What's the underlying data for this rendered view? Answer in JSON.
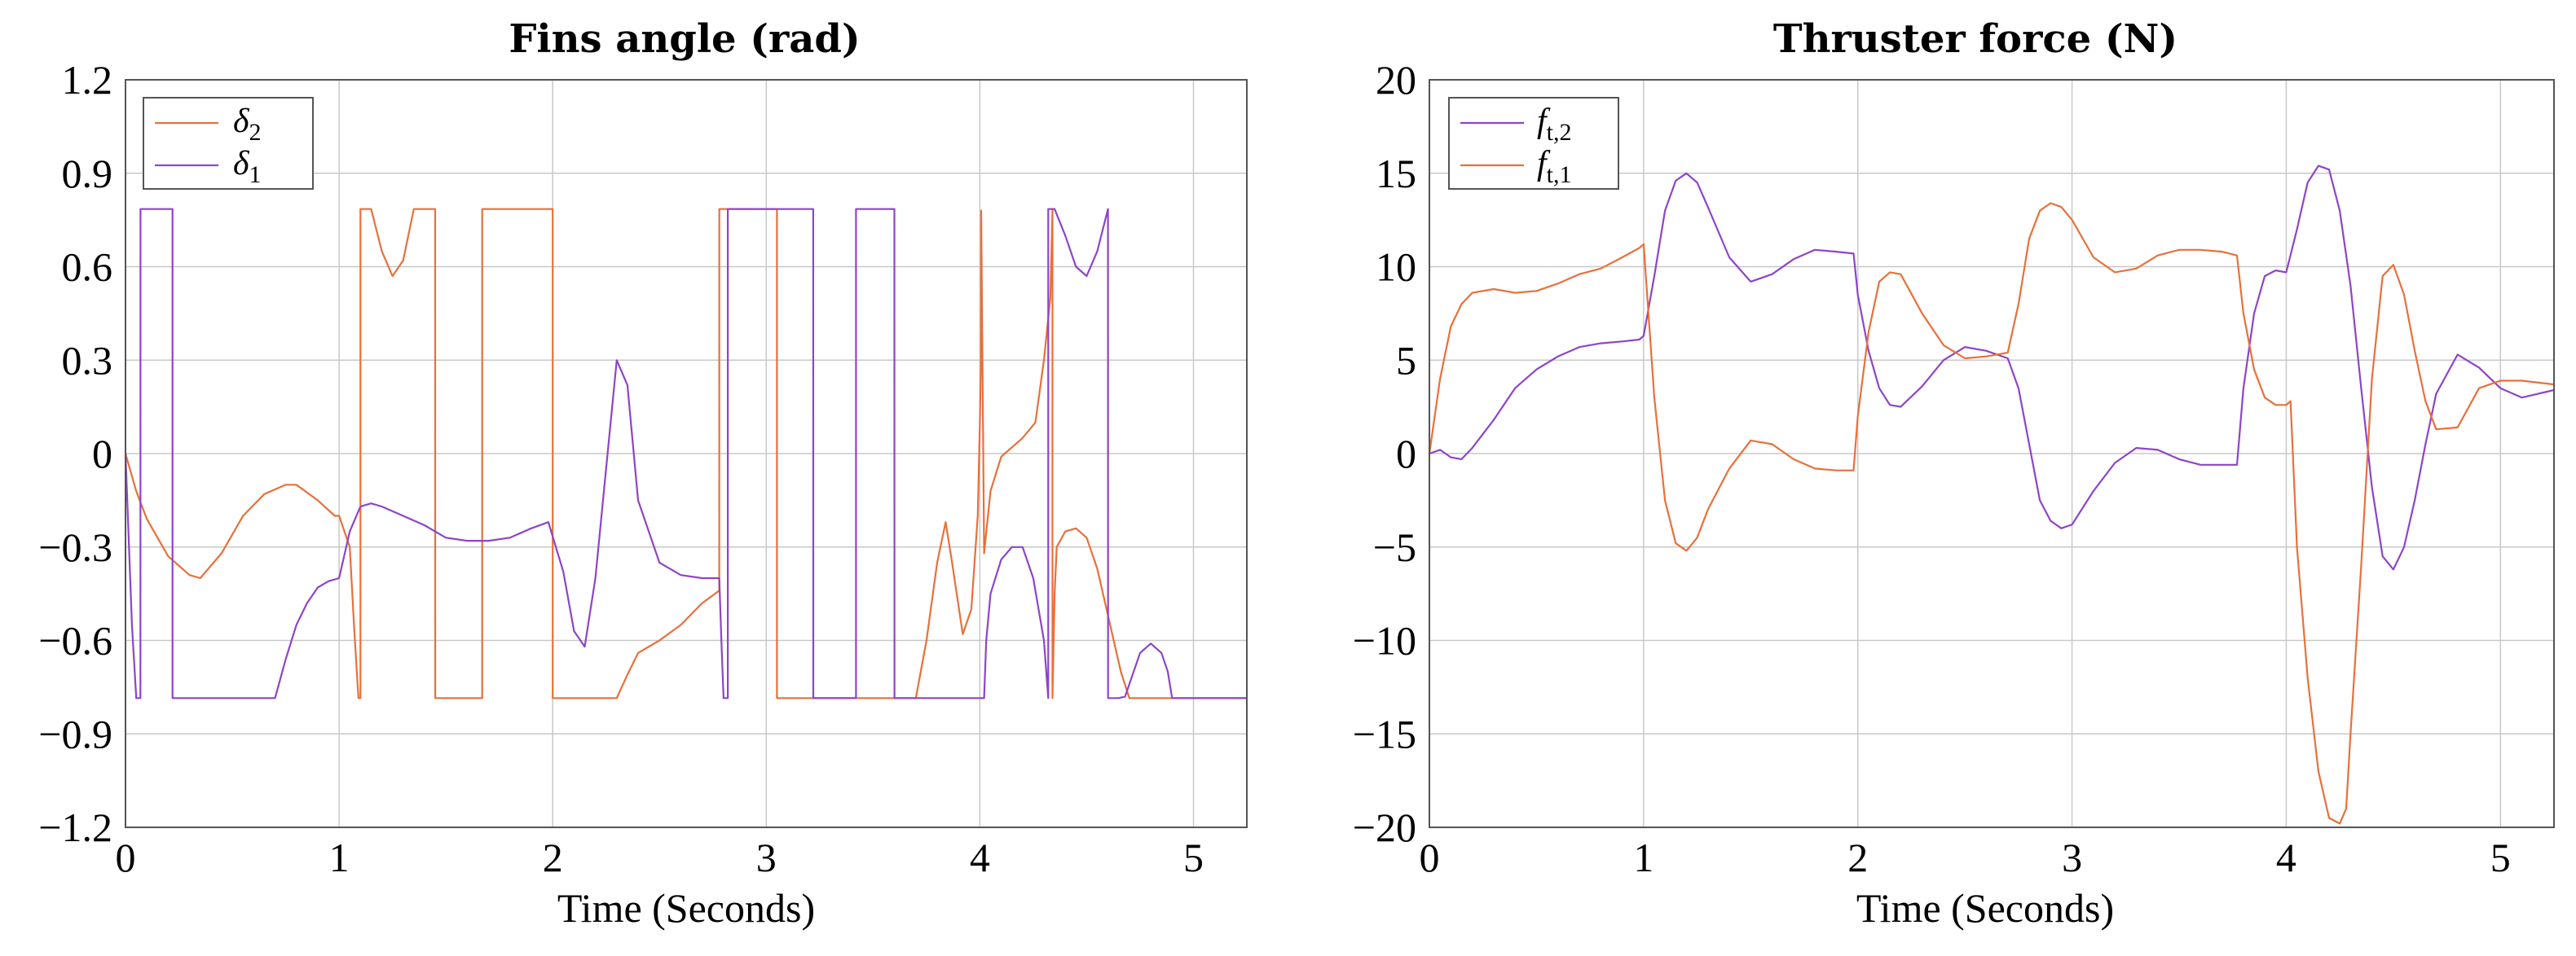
{
  "chart_data": [
    {
      "type": "line",
      "title": "Fins angle (rad)",
      "xlabel": "Time (Seconds)",
      "ylabel": "",
      "xlim": [
        0,
        5.25
      ],
      "ylim": [
        -1.2,
        1.2
      ],
      "x_ticks": [
        "0",
        "1",
        "2",
        "3",
        "4",
        "5"
      ],
      "y_ticks": [
        "1.2",
        "0.9",
        "0.6",
        "0.3",
        "0",
        "−0.3",
        "−0.6",
        "−0.9",
        "−1.2"
      ],
      "grid": true,
      "legend_position": "top-left",
      "legend": [
        {
          "symbol": "δ",
          "subscript": "2",
          "color": "#e8703a"
        },
        {
          "symbol": "δ",
          "subscript": "1",
          "color": "#8e44c8"
        }
      ],
      "series": [
        {
          "color": "#e8703a",
          "x": [
            0,
            0.05,
            0.1,
            0.2,
            0.3,
            0.35,
            0.45,
            0.55,
            0.65,
            0.75,
            0.8,
            0.9,
            0.98,
            1.0,
            1.05,
            1.07,
            1.09,
            1.091,
            1.1,
            1.1001,
            1.15,
            1.2,
            1.25,
            1.3,
            1.35,
            1.4,
            1.45,
            1.4501,
            1.67,
            1.6701,
            2.0,
            2.0001,
            2.3,
            2.35,
            2.4,
            2.5,
            2.6,
            2.7,
            2.78,
            2.7801,
            3.05,
            3.0501,
            3.7,
            3.75,
            3.8,
            3.84,
            3.87,
            3.92,
            3.96,
            3.99,
            4.0,
            4.005,
            4.006,
            4.02,
            4.05,
            4.1,
            4.2,
            4.26,
            4.3,
            4.33,
            4.34,
            4.3401,
            4.35,
            4.36,
            4.4,
            4.45,
            4.5,
            4.55,
            4.6,
            4.66,
            4.7,
            4.75,
            5.25
          ],
          "y": [
            0,
            -0.12,
            -0.21,
            -0.33,
            -0.39,
            -0.4,
            -0.32,
            -0.2,
            -0.13,
            -0.1,
            -0.1,
            -0.15,
            -0.2,
            -0.2,
            -0.3,
            -0.55,
            -0.78,
            -0.785,
            -0.785,
            0.785,
            0.785,
            0.65,
            0.57,
            0.62,
            0.785,
            0.785,
            0.785,
            -0.785,
            -0.785,
            0.785,
            0.785,
            -0.785,
            -0.785,
            -0.71,
            -0.64,
            -0.6,
            -0.55,
            -0.48,
            -0.44,
            0.785,
            0.785,
            -0.785,
            -0.785,
            -0.6,
            -0.35,
            -0.22,
            -0.35,
            -0.58,
            -0.5,
            -0.2,
            0.1,
            0.3,
            0.78,
            -0.32,
            -0.12,
            -0.01,
            0.05,
            0.1,
            0.3,
            0.5,
            0.785,
            -0.785,
            -0.45,
            -0.3,
            -0.25,
            -0.24,
            -0.27,
            -0.37,
            -0.52,
            -0.7,
            -0.785,
            -0.785,
            -0.785
          ]
        },
        {
          "color": "#8e44c8",
          "x": [
            0,
            0.03,
            0.05,
            0.0501,
            0.07,
            0.0701,
            0.22,
            0.2201,
            0.7,
            0.75,
            0.8,
            0.85,
            0.9,
            0.95,
            1.0,
            1.05,
            1.1,
            1.15,
            1.2,
            1.3,
            1.4,
            1.5,
            1.6,
            1.7,
            1.8,
            1.9,
            1.98,
            2.05,
            2.1,
            2.15,
            2.2,
            2.25,
            2.3,
            2.35,
            2.4,
            2.5,
            2.6,
            2.7,
            2.78,
            2.79,
            2.8,
            2.8001,
            2.82,
            2.8201,
            3.22,
            3.2201,
            3.42,
            3.4201,
            3.6,
            3.6001,
            3.75,
            3.7501,
            4.02,
            4.03,
            4.05,
            4.1,
            4.15,
            4.2,
            4.25,
            4.3,
            4.32,
            4.3201,
            4.35,
            4.3501,
            4.4,
            4.45,
            4.5,
            4.55,
            4.6,
            4.6001,
            4.65,
            4.68,
            4.72,
            4.75,
            4.8,
            4.85,
            4.88,
            4.9,
            4.95,
            5.25
          ],
          "y": [
            0,
            -0.55,
            -0.78,
            -0.785,
            -0.785,
            0.785,
            0.785,
            -0.785,
            -0.785,
            -0.66,
            -0.55,
            -0.48,
            -0.43,
            -0.41,
            -0.4,
            -0.25,
            -0.17,
            -0.16,
            -0.17,
            -0.2,
            -0.23,
            -0.27,
            -0.28,
            -0.28,
            -0.27,
            -0.24,
            -0.22,
            -0.38,
            -0.57,
            -0.62,
            -0.4,
            -0.05,
            0.3,
            0.22,
            -0.15,
            -0.35,
            -0.39,
            -0.4,
            -0.4,
            -0.6,
            -0.785,
            -0.785,
            -0.785,
            0.785,
            0.785,
            -0.785,
            -0.785,
            0.785,
            0.785,
            -0.785,
            -0.785,
            -0.785,
            -0.785,
            -0.6,
            -0.45,
            -0.34,
            -0.3,
            -0.3,
            -0.4,
            -0.6,
            -0.785,
            0.785,
            0.785,
            0.785,
            0.7,
            0.6,
            0.57,
            0.65,
            0.785,
            -0.785,
            -0.785,
            -0.78,
            -0.7,
            -0.64,
            -0.61,
            -0.64,
            -0.7,
            -0.785,
            -0.785,
            -0.785
          ]
        }
      ]
    },
    {
      "type": "line",
      "title": "Thruster force (N)",
      "xlabel": "Time (Seconds)",
      "ylabel": "",
      "xlim": [
        0,
        5.25
      ],
      "ylim": [
        -20,
        20
      ],
      "x_ticks": [
        "0",
        "1",
        "2",
        "3",
        "4",
        "5"
      ],
      "y_ticks": [
        "20",
        "15",
        "10",
        "5",
        "0",
        "−5",
        "−10",
        "−15",
        "−20"
      ],
      "grid": true,
      "legend_position": "top-left",
      "legend": [
        {
          "symbol": "f",
          "subscript": "t,2",
          "color": "#8e44c8"
        },
        {
          "symbol": "f",
          "subscript": "t,1",
          "color": "#e8703a"
        }
      ],
      "series": [
        {
          "color": "#8e44c8",
          "x": [
            0,
            0.05,
            0.1,
            0.15,
            0.2,
            0.3,
            0.4,
            0.5,
            0.6,
            0.7,
            0.8,
            0.9,
            0.98,
            1.0,
            1.05,
            1.1,
            1.15,
            1.2,
            1.25,
            1.3,
            1.4,
            1.5,
            1.6,
            1.7,
            1.8,
            1.9,
            1.98,
            2.0,
            2.05,
            2.1,
            2.15,
            2.2,
            2.3,
            2.4,
            2.5,
            2.6,
            2.7,
            2.75,
            2.8,
            2.85,
            2.9,
            2.95,
            3.0,
            3.1,
            3.2,
            3.3,
            3.4,
            3.5,
            3.6,
            3.7,
            3.77,
            3.8,
            3.85,
            3.9,
            3.95,
            4.0,
            4.05,
            4.1,
            4.15,
            4.2,
            4.25,
            4.3,
            4.35,
            4.4,
            4.45,
            4.5,
            4.55,
            4.6,
            4.65,
            4.7,
            4.8,
            4.9,
            5.0,
            5.1,
            5.25
          ],
          "y": [
            0,
            0.2,
            -0.2,
            -0.3,
            0.3,
            1.8,
            3.5,
            4.5,
            5.2,
            5.7,
            5.9,
            6.0,
            6.1,
            6.3,
            9.5,
            13,
            14.6,
            15,
            14.5,
            13.2,
            10.5,
            9.2,
            9.6,
            10.4,
            10.9,
            10.8,
            10.7,
            8.5,
            5.5,
            3.5,
            2.6,
            2.5,
            3.6,
            5,
            5.7,
            5.5,
            5.1,
            3.5,
            0.5,
            -2.5,
            -3.6,
            -4,
            -3.8,
            -2,
            -0.5,
            0.3,
            0.2,
            -0.3,
            -0.6,
            -0.6,
            -0.6,
            3.5,
            7.5,
            9.5,
            9.8,
            9.7,
            12,
            14.5,
            15.4,
            15.2,
            13,
            9,
            3.5,
            -1.8,
            -5.5,
            -6.2,
            -5,
            -2.5,
            0.5,
            3.2,
            5.3,
            4.6,
            3.5,
            3,
            3.4
          ]
        },
        {
          "color": "#e8703a",
          "x": [
            0,
            0.05,
            0.1,
            0.15,
            0.2,
            0.3,
            0.4,
            0.5,
            0.6,
            0.7,
            0.8,
            0.9,
            0.98,
            1.0,
            1.05,
            1.1,
            1.15,
            1.2,
            1.25,
            1.3,
            1.4,
            1.5,
            1.6,
            1.7,
            1.8,
            1.9,
            1.98,
            2.0,
            2.05,
            2.1,
            2.15,
            2.2,
            2.3,
            2.4,
            2.5,
            2.6,
            2.7,
            2.75,
            2.8,
            2.85,
            2.9,
            2.95,
            3.0,
            3.1,
            3.2,
            3.3,
            3.4,
            3.5,
            3.6,
            3.7,
            3.77,
            3.8,
            3.85,
            3.9,
            3.95,
            4.0,
            4.02,
            4.05,
            4.1,
            4.15,
            4.2,
            4.25,
            4.28,
            4.3,
            4.35,
            4.4,
            4.45,
            4.5,
            4.55,
            4.6,
            4.65,
            4.7,
            4.8,
            4.9,
            5.0,
            5.1,
            5.25
          ],
          "y": [
            0,
            4,
            6.8,
            8,
            8.6,
            8.8,
            8.6,
            8.7,
            9.1,
            9.6,
            9.9,
            10.5,
            11,
            11.2,
            3,
            -2.5,
            -4.8,
            -5.2,
            -4.5,
            -3,
            -0.8,
            0.7,
            0.5,
            -0.3,
            -0.8,
            -0.9,
            -0.9,
            2,
            6.5,
            9.2,
            9.7,
            9.6,
            7.5,
            5.8,
            5.1,
            5.2,
            5.4,
            8,
            11.5,
            13,
            13.4,
            13.2,
            12.5,
            10.5,
            9.7,
            9.9,
            10.6,
            10.9,
            10.9,
            10.8,
            10.6,
            7.5,
            4.5,
            3,
            2.6,
            2.6,
            2.8,
            -5,
            -12,
            -17,
            -19.5,
            -19.8,
            -19,
            -15,
            -6,
            4,
            9.5,
            10.1,
            8.5,
            5.5,
            2.8,
            1.3,
            1.4,
            3.5,
            3.9,
            3.9,
            3.7
          ]
        }
      ]
    }
  ]
}
